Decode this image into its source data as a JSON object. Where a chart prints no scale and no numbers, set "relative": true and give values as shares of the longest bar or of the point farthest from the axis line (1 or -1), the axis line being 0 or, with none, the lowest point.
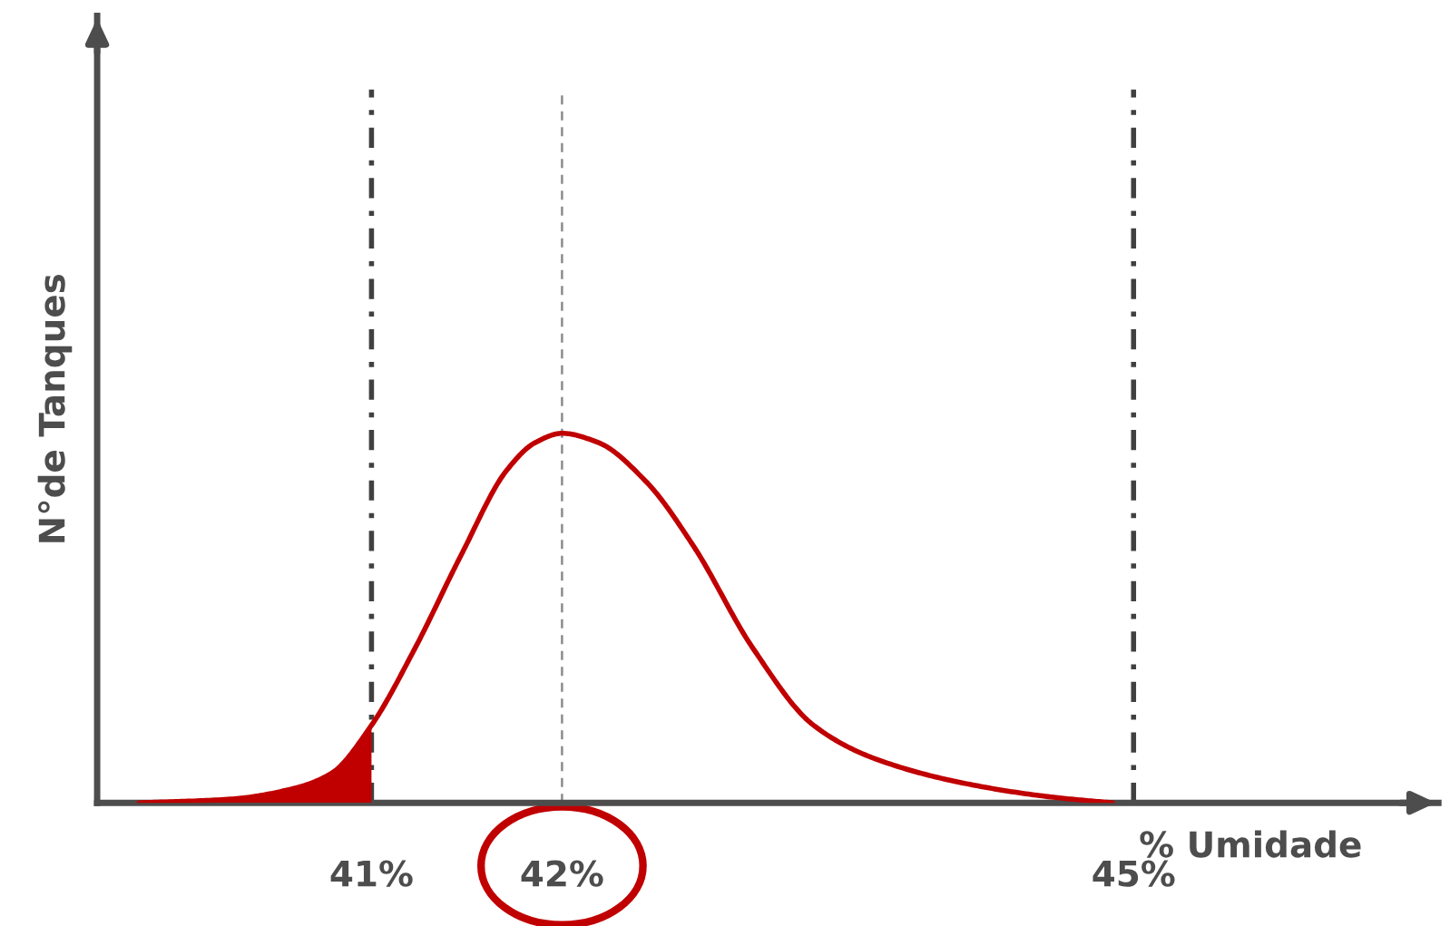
{
  "chart_data": {
    "type": "line",
    "xlabel": "% Umidade",
    "ylabel": "N°de Tanques",
    "relative": true,
    "tick_labels": "x",
    "xlim": [
      39.56,
      46.6
    ],
    "xticks": [
      {
        "value": 41,
        "label": "41%"
      },
      {
        "value": 42,
        "label": "42%"
      },
      {
        "value": 45,
        "label": "45%"
      }
    ],
    "series": [
      {
        "color": "#c00000",
        "x": [
          39.78,
          40.26,
          40.6,
          40.79,
          41.0,
          41.23,
          41.47,
          41.71,
          41.86,
          42.0,
          42.19,
          42.44,
          42.69,
          43.0,
          43.32,
          43.64,
          44.14,
          44.58,
          44.89
        ],
        "values": [
          0.0,
          0.01,
          0.04,
          0.08,
          0.21,
          0.42,
          0.67,
          0.9,
          0.975,
          1.0,
          0.975,
          0.87,
          0.695,
          0.42,
          0.21,
          0.12,
          0.05,
          0.015,
          0.0
        ]
      },
      {
        "type": "area",
        "color": "#c00000",
        "x": [
          39.78,
          40.26,
          40.6,
          40.79,
          41.0
        ],
        "values": [
          0.0,
          0.01,
          0.04,
          0.08,
          0.21
        ]
      }
    ],
    "ref_lines": [
      {
        "axis": "x",
        "value": 41,
        "color": "#404040",
        "line_style": "dashdot"
      },
      {
        "axis": "x",
        "value": 42,
        "color": "#8c8c8c",
        "line_style": "dashed"
      },
      {
        "axis": "x",
        "value": 45,
        "color": "#404040",
        "line_style": "dashdot"
      }
    ]
  }
}
